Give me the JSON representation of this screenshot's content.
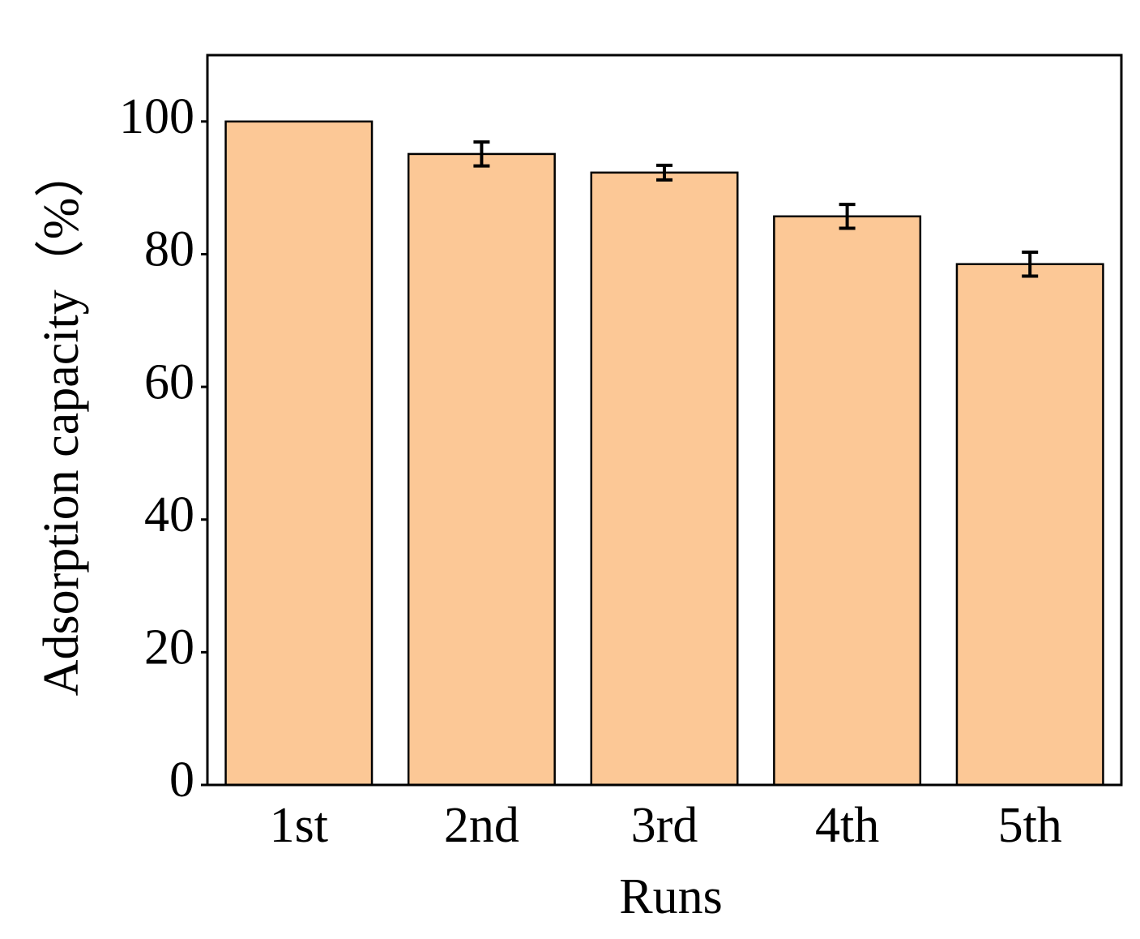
{
  "chart_data": {
    "type": "bar",
    "x_label": "Runs",
    "y_label": "Adsorption capacity（%）",
    "categories": [
      "1st",
      "2nd",
      "3rd",
      "4th",
      "5th"
    ],
    "values": [
      100,
      95.1,
      92.3,
      85.7,
      78.5
    ],
    "errors": [
      null,
      1.8,
      1.1,
      1.8,
      1.8
    ],
    "color": "#fcc896",
    "ylim": [
      0,
      110
    ],
    "yticks": [
      0,
      20,
      40,
      60,
      80,
      100
    ],
    "grid": false
  }
}
